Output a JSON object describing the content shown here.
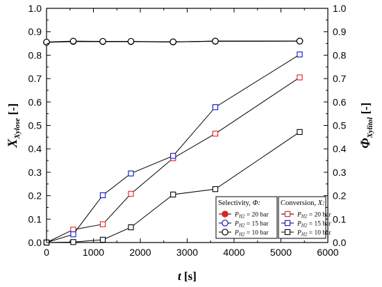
{
  "chart_data": {
    "type": "line",
    "xlabel": {
      "var": "t",
      "unit": " [s]"
    },
    "ylabel_left": {
      "var": "X",
      "sub": "Xylose",
      "unit": " [-]"
    },
    "ylabel_right": {
      "var": "Φ",
      "sub": "Xylitol",
      "unit": " [-]"
    },
    "xlim": [
      0,
      6000
    ],
    "ylim": [
      0,
      1.0
    ],
    "xticks": [
      0,
      1000,
      2000,
      3000,
      4000,
      5000,
      6000
    ],
    "yticks": [
      0.0,
      0.1,
      0.2,
      0.3,
      0.4,
      0.5,
      0.6,
      0.7,
      0.8,
      0.9,
      1.0
    ],
    "ytick_labels": [
      "0.0",
      "0.1",
      "0.2",
      "0.3",
      "0.4",
      "0.5",
      "0.6",
      "0.7",
      "0.8",
      "0.9",
      "1.0"
    ],
    "grid": false,
    "series": [
      {
        "group": "selectivity",
        "pressure": "20",
        "marker": "circle",
        "filled": true,
        "color": "#e02020",
        "x": [
          0,
          570,
          1200,
          1800,
          2700,
          3600,
          5400
        ],
        "y": [
          0.855,
          0.858,
          0.858,
          0.858,
          0.857,
          0.859,
          0.86
        ]
      },
      {
        "group": "selectivity",
        "pressure": "15",
        "marker": "circle",
        "filled": false,
        "color": "#1010cc",
        "x": [
          0,
          570,
          1200,
          1800,
          2700,
          3600,
          5400
        ],
        "y": [
          0.855,
          0.859,
          0.858,
          0.858,
          0.856,
          0.86,
          0.86
        ]
      },
      {
        "group": "selectivity",
        "pressure": "10",
        "marker": "circle",
        "filled": false,
        "color": "#000000",
        "x": [
          0,
          570,
          1200,
          1800,
          2700,
          3600,
          5400
        ],
        "y": [
          0.856,
          0.86,
          0.859,
          0.859,
          0.857,
          0.86,
          0.86
        ]
      },
      {
        "group": "conversion",
        "pressure": "20",
        "marker": "square",
        "filled": false,
        "color": "#e02020",
        "x": [
          0,
          570,
          1200,
          1800,
          2700,
          3600,
          5400
        ],
        "y": [
          0.0,
          0.055,
          0.078,
          0.208,
          0.36,
          0.465,
          0.705
        ]
      },
      {
        "group": "conversion",
        "pressure": "15",
        "marker": "square",
        "filled": false,
        "color": "#1010cc",
        "x": [
          0,
          570,
          1200,
          1800,
          2700,
          3600,
          5400
        ],
        "y": [
          0.0,
          0.035,
          0.202,
          0.295,
          0.37,
          0.578,
          0.803
        ]
      },
      {
        "group": "conversion",
        "pressure": "10",
        "marker": "square",
        "filled": false,
        "color": "#000000",
        "x": [
          0,
          570,
          1200,
          1800,
          2700,
          3600,
          5400
        ],
        "y": [
          0.0,
          0.002,
          0.012,
          0.065,
          0.205,
          0.228,
          0.472
        ]
      }
    ],
    "legend": {
      "placement": "bottom-right",
      "selectivity_title": "Selectivity, Φ:",
      "conversion_title": "Conversion, X:",
      "p_symbol": "P",
      "p_sub": "H2",
      "entries": [
        {
          "group": "selectivity",
          "label": " = 20 bar"
        },
        {
          "group": "selectivity",
          "label": " = 15 bar"
        },
        {
          "group": "selectivity",
          "label": " = 10 bar"
        },
        {
          "group": "conversion",
          "label": " = 20 bar"
        },
        {
          "group": "conversion",
          "label": " = 15 bar"
        },
        {
          "group": "conversion",
          "label": " = 10 bar"
        }
      ]
    }
  }
}
